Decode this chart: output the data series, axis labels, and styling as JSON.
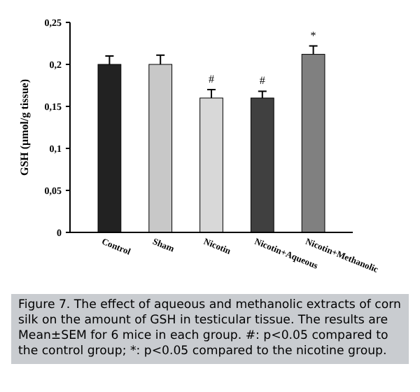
{
  "chart_data": {
    "type": "bar",
    "ylabel": "GSH (µmol/g tissue)",
    "categories": [
      "Control",
      "Sham",
      "Nicotin",
      "Nicotin+Aqueous",
      "Nicotin+Methanolic"
    ],
    "values": [
      0.2,
      0.2,
      0.16,
      0.16,
      0.212
    ],
    "errors": [
      0.01,
      0.011,
      0.01,
      0.008,
      0.01
    ],
    "colors": [
      "#222222",
      "#c8c8c8",
      "#d8d8d8",
      "#404040",
      "#808080"
    ],
    "ylim": [
      0,
      0.25
    ],
    "yticks": [
      0,
      {
        "value": 0.05,
        "label": "0,05"
      },
      {
        "value": 0.1,
        "label": "0,1"
      },
      {
        "value": 0.15,
        "label": "0,15"
      },
      {
        "value": 0.2,
        "label": "0,2"
      },
      {
        "value": 0.25,
        "label": "0,25"
      }
    ],
    "value_labels": [
      null,
      null,
      "#",
      "#",
      "*"
    ],
    "annotations": [
      "Figure 7. The effect of aqueous and methanolic extracts of corn silk on the amount of GSH in testicular tissue. The results are Mean±SEM for 6 mice in each group. #: p<0.05 compared to the control group; *: p<0.05 compared to the nicotine group."
    ]
  }
}
